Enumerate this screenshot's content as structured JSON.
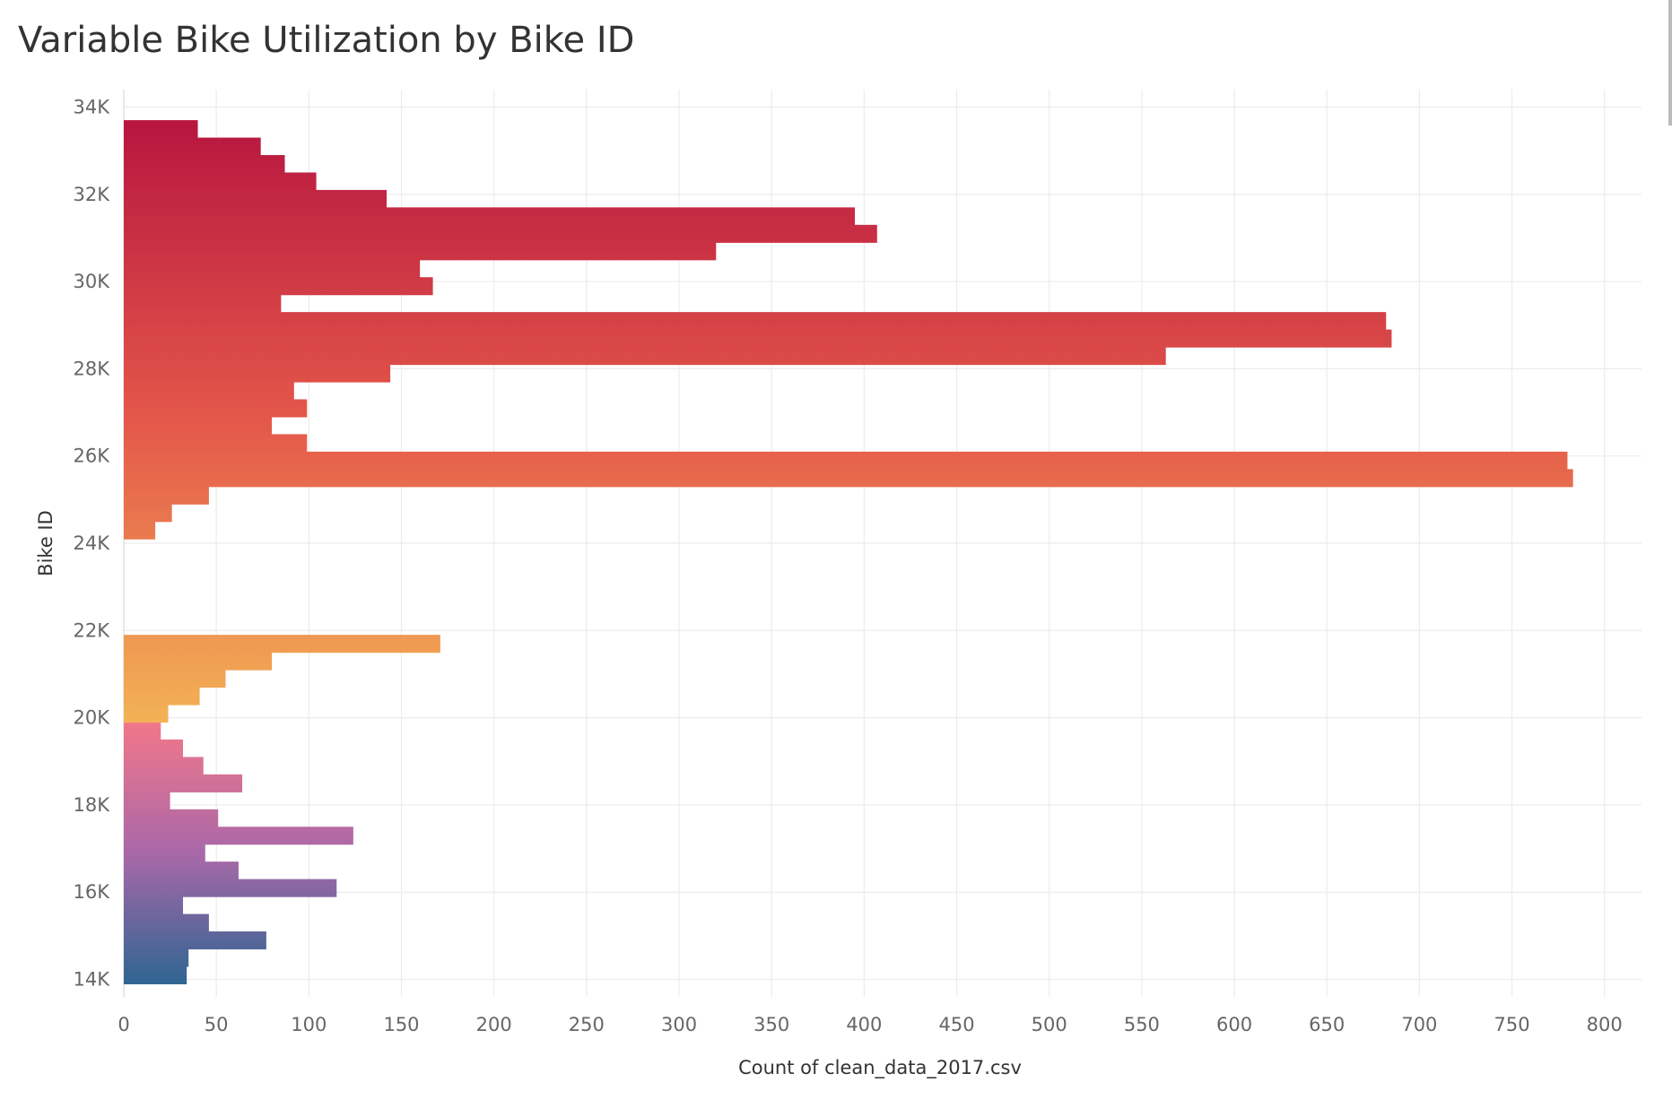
{
  "chart_data": {
    "type": "bar",
    "orientation": "horizontal",
    "title": "Variable Bike Utilization by Bike ID",
    "xlabel": "Count of clean_data_2017.csv",
    "ylabel": "Bike ID",
    "xlim": [
      0,
      820
    ],
    "ylim": [
      13600,
      34400
    ],
    "x_ticks": [
      0,
      50,
      100,
      150,
      200,
      250,
      300,
      350,
      400,
      450,
      500,
      550,
      600,
      650,
      700,
      750,
      800
    ],
    "x_tick_labels": [
      "0",
      "50",
      "100",
      "150",
      "200",
      "250",
      "300",
      "350",
      "400",
      "450",
      "500",
      "550",
      "600",
      "650",
      "700",
      "750",
      "800"
    ],
    "y_ticks": [
      14000,
      16000,
      18000,
      20000,
      22000,
      24000,
      26000,
      28000,
      30000,
      32000,
      34000
    ],
    "y_tick_labels": [
      "14K",
      "16K",
      "18K",
      "20K",
      "22K",
      "24K",
      "26K",
      "28K",
      "30K",
      "32K",
      "34K"
    ],
    "grid": true,
    "bar_thickness_bike_ids": 400,
    "color_encoding": "gradient by Bike ID",
    "colors": {
      "group_low": {
        "from": "#2f6592",
        "via": "#a968a8",
        "to": "#f27789"
      },
      "group_high": {
        "from": "#f3b255",
        "via": "#e4584a",
        "to": "#b7163f"
      }
    },
    "series": [
      {
        "bike_id": [
          14100,
          14500,
          14900,
          15300,
          15700,
          16100,
          16500,
          16900,
          17300,
          17700,
          18100,
          18500,
          18900,
          19300,
          19700,
          20100,
          20500,
          20900,
          21300,
          21700,
          24300,
          24700,
          25100,
          25500,
          25900,
          26300,
          26700,
          27100,
          27500,
          27900,
          28300,
          28700,
          29100,
          29500,
          29900,
          30300,
          30700,
          31100,
          31500,
          31900,
          32300,
          32700,
          33100,
          33500
        ],
        "count": [
          34,
          35,
          77,
          46,
          32,
          115,
          62,
          44,
          124,
          51,
          25,
          64,
          43,
          32,
          20,
          24,
          41,
          55,
          80,
          171,
          17,
          26,
          46,
          783,
          780,
          99,
          80,
          99,
          92,
          144,
          563,
          685,
          682,
          85,
          167,
          160,
          320,
          407,
          395,
          142,
          104,
          87,
          74,
          40
        ],
        "group": [
          "low",
          "low",
          "low",
          "low",
          "low",
          "low",
          "low",
          "low",
          "low",
          "low",
          "low",
          "low",
          "low",
          "low",
          "low",
          "high",
          "high",
          "high",
          "high",
          "high",
          "high",
          "high",
          "high",
          "high",
          "high",
          "high",
          "high",
          "high",
          "high",
          "high",
          "high",
          "high",
          "high",
          "high",
          "high",
          "high",
          "high",
          "high",
          "high",
          "high",
          "high",
          "high",
          "high",
          "high"
        ]
      }
    ]
  }
}
